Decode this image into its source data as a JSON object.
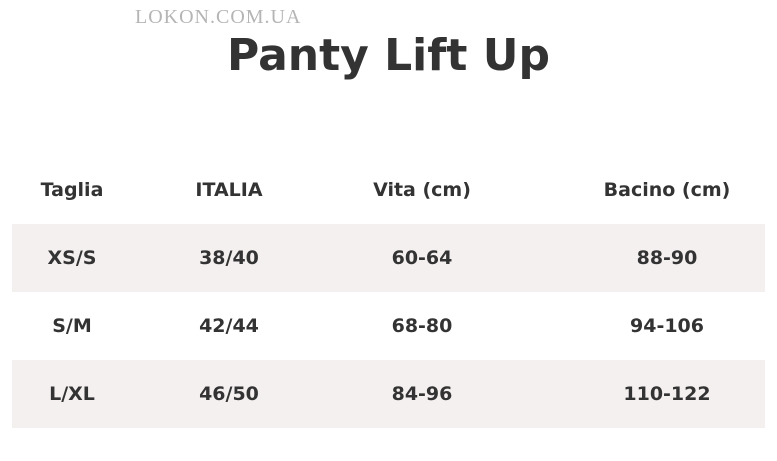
{
  "watermark": "LOKON.COM.UA",
  "title": "Panty Lift Up",
  "table": {
    "header": [
      "Taglia",
      "ITALIA",
      "Vita (cm)",
      "Bacino (cm)"
    ],
    "rows": [
      [
        "XS/S",
        "38/40",
        "60-64",
        "88-90"
      ],
      [
        "S/M",
        "42/44",
        "68-80",
        "94-106"
      ],
      [
        "L/XL",
        "46/50",
        "84-96",
        "110-122"
      ]
    ]
  }
}
